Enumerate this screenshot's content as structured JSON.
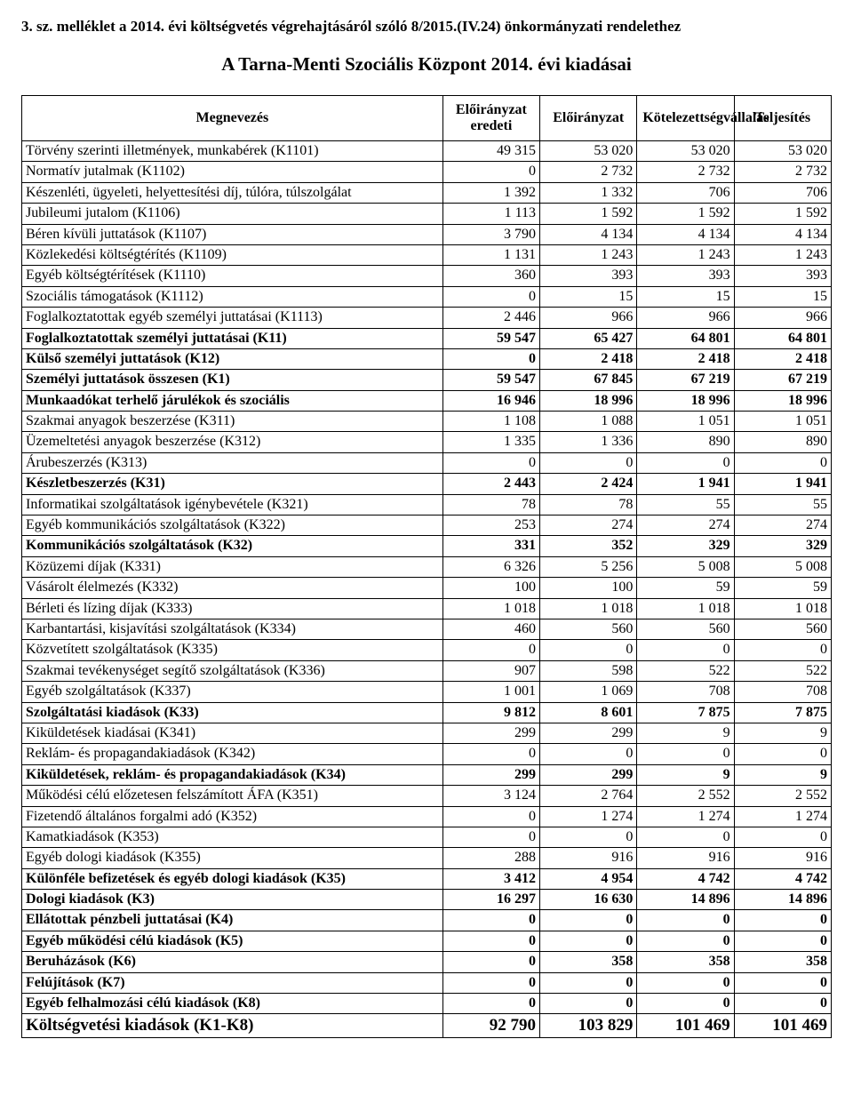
{
  "header_text": "3. sz. melléklet a 2014. évi költségvetés végrehajtásáról szóló 8/2015.(IV.24) önkormányzati rendelethez",
  "title_text": "A Tarna-Menti Szociális Központ 2014. évi kiadásai",
  "columns": {
    "c0": "Megnevezés",
    "c1": "Előirányzat eredeti",
    "c2": "Előirányzat",
    "c3": "Kötelezettségvállalás",
    "c4": "Teljesítés"
  },
  "rows": [
    {
      "label": "Törvény szerinti illetmények, munkabérek      (K1101)",
      "v": [
        "49 315",
        "53 020",
        "53 020",
        "53 020"
      ],
      "bold": false
    },
    {
      "label": "Normatív jutalmak        (K1102)",
      "v": [
        "0",
        "2 732",
        "2 732",
        "2 732"
      ],
      "bold": false
    },
    {
      "label": "Készenléti, ügyeleti, helyettesítési díj, túlóra, túlszolgálat",
      "v": [
        "1 392",
        "1 332",
        "706",
        "706"
      ],
      "bold": false
    },
    {
      "label": "Jubileumi jutalom      (K1106)",
      "v": [
        "1 113",
        "1 592",
        "1 592",
        "1 592"
      ],
      "bold": false
    },
    {
      "label": "Béren kívüli juttatások       (K1107)",
      "v": [
        "3 790",
        "4 134",
        "4 134",
        "4 134"
      ],
      "bold": false
    },
    {
      "label": "Közlekedési költségtérítés       (K1109)",
      "v": [
        "1 131",
        "1 243",
        "1 243",
        "1 243"
      ],
      "bold": false
    },
    {
      "label": "Egyéb költségtérítések       (K1110)",
      "v": [
        "360",
        "393",
        "393",
        "393"
      ],
      "bold": false
    },
    {
      "label": "Szociális támogatások       (K1112)",
      "v": [
        "0",
        "15",
        "15",
        "15"
      ],
      "bold": false
    },
    {
      "label": "Foglalkoztatottak egyéb személyi juttatásai     (K1113)",
      "v": [
        "2 446",
        "966",
        "966",
        "966"
      ],
      "bold": false
    },
    {
      "label": "Foglalkoztatottak személyi juttatásai       (K11)",
      "v": [
        "59 547",
        "65 427",
        "64 801",
        "64 801"
      ],
      "bold": true
    },
    {
      "label": "Külső személyi juttatások       (K12)",
      "v": [
        "0",
        "2 418",
        "2 418",
        "2 418"
      ],
      "bold": true
    },
    {
      "label": "Személyi juttatások összesen       (K1)",
      "v": [
        "59 547",
        "67 845",
        "67 219",
        "67 219"
      ],
      "bold": true
    },
    {
      "label": "Munkaadókat terhelő járulékok és szociális",
      "v": [
        "16 946",
        "18 996",
        "18 996",
        "18 996"
      ],
      "bold": true
    },
    {
      "label": "Szakmai anyagok beszerzése       (K311)",
      "v": [
        "1 108",
        "1 088",
        "1 051",
        "1 051"
      ],
      "bold": false
    },
    {
      "label": "Üzemeltetési anyagok beszerzése       (K312)",
      "v": [
        "1 335",
        "1 336",
        "890",
        "890"
      ],
      "bold": false
    },
    {
      "label": "Árubeszerzés       (K313)",
      "v": [
        "0",
        "0",
        "0",
        "0"
      ],
      "bold": false
    },
    {
      "label": "Készletbeszerzés    (K31)",
      "v": [
        "2 443",
        "2 424",
        "1 941",
        "1 941"
      ],
      "bold": true
    },
    {
      "label": "Informatikai szolgáltatások igénybevétele       (K321)",
      "v": [
        "78",
        "78",
        "55",
        "55"
      ],
      "bold": false
    },
    {
      "label": "Egyéb kommunikációs szolgáltatások       (K322)",
      "v": [
        "253",
        "274",
        "274",
        "274"
      ],
      "bold": false
    },
    {
      "label": "Kommunikációs szolgáltatások       (K32)",
      "v": [
        "331",
        "352",
        "329",
        "329"
      ],
      "bold": true
    },
    {
      "label": "Közüzemi díjak       (K331)",
      "v": [
        "6 326",
        "5 256",
        "5 008",
        "5 008"
      ],
      "bold": false
    },
    {
      "label": "Vásárolt élelmezés       (K332)",
      "v": [
        "100",
        "100",
        "59",
        "59"
      ],
      "bold": false
    },
    {
      "label": "Bérleti és lízing díjak   (K333)",
      "v": [
        "1 018",
        "1 018",
        "1 018",
        "1 018"
      ],
      "bold": false
    },
    {
      "label": "Karbantartási, kisjavítási szolgáltatások       (K334)",
      "v": [
        "460",
        "560",
        "560",
        "560"
      ],
      "bold": false
    },
    {
      "label": "Közvetített szolgáltatások       (K335)",
      "v": [
        "0",
        "0",
        "0",
        "0"
      ],
      "bold": false
    },
    {
      "label": "Szakmai tevékenységet segítő szolgáltatások       (K336)",
      "v": [
        "907",
        "598",
        "522",
        "522"
      ],
      "bold": false
    },
    {
      "label": "Egyéb szolgáltatások       (K337)",
      "v": [
        "1 001",
        "1 069",
        "708",
        "708"
      ],
      "bold": false
    },
    {
      "label": "Szolgáltatási kiadások       (K33)",
      "v": [
        "9 812",
        "8 601",
        "7 875",
        "7 875"
      ],
      "bold": true
    },
    {
      "label": "Kiküldetések kiadásai       (K341)",
      "v": [
        "299",
        "299",
        "9",
        "9"
      ],
      "bold": false
    },
    {
      "label": "Reklám- és propagandakiadások       (K342)",
      "v": [
        "0",
        "0",
        "0",
        "0"
      ],
      "bold": false
    },
    {
      "label": "Kiküldetések, reklám- és propagandakiadások      (K34)",
      "v": [
        "299",
        "299",
        "9",
        "9"
      ],
      "bold": true
    },
    {
      "label": "Működési célú előzetesen felszámított ÁFA (K351)",
      "v": [
        "3 124",
        "2 764",
        "2 552",
        "2 552"
      ],
      "bold": false
    },
    {
      "label": "Fizetendő általános forgalmi adó       (K352)",
      "v": [
        "0",
        "1 274",
        "1 274",
        "1 274"
      ],
      "bold": false
    },
    {
      "label": "Kamatkiadások    (K353)",
      "v": [
        "0",
        "0",
        "0",
        "0"
      ],
      "bold": false
    },
    {
      "label": "Egyéb dologi kiadások       (K355)",
      "v": [
        "288",
        "916",
        "916",
        "916"
      ],
      "bold": false
    },
    {
      "label": "Különféle befizetések és egyéb dologi kiadások  (K35)",
      "v": [
        "3 412",
        "4 954",
        "4 742",
        "4 742"
      ],
      "bold": true
    },
    {
      "label": "Dologi kiadások        (K3)",
      "v": [
        "16 297",
        "16 630",
        "14 896",
        "14 896"
      ],
      "bold": true
    },
    {
      "label": "Ellátottak pénzbeli juttatásai       (K4)",
      "v": [
        "0",
        "0",
        "0",
        "0"
      ],
      "bold": true
    },
    {
      "label": "Egyéb működési célú kiadások       (K5)",
      "v": [
        "0",
        "0",
        "0",
        "0"
      ],
      "bold": true
    },
    {
      "label": "Beruházások       (K6)",
      "v": [
        "0",
        "358",
        "358",
        "358"
      ],
      "bold": true
    },
    {
      "label": "Felújítások        (K7)",
      "v": [
        "0",
        "0",
        "0",
        "0"
      ],
      "bold": true
    },
    {
      "label": "Egyéb felhalmozási célú kiadások    (K8)",
      "v": [
        "0",
        "0",
        "0",
        "0"
      ],
      "bold": true
    },
    {
      "label": "Költségvetési kiadások     (K1-K8)",
      "v": [
        "92 790",
        "103 829",
        "101 469",
        "101 469"
      ],
      "bold": true,
      "total": true
    }
  ]
}
